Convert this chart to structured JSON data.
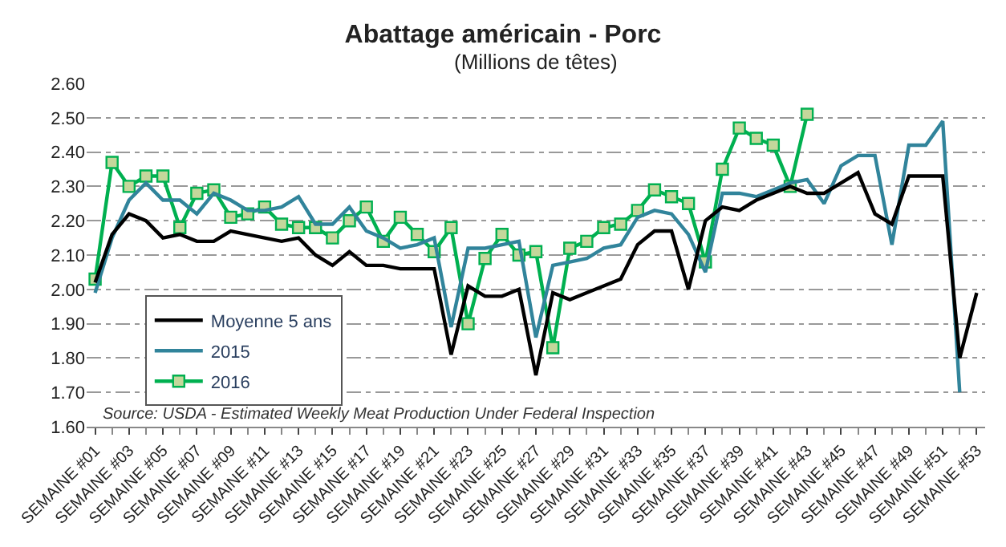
{
  "chart_data": {
    "type": "line",
    "title": "Abattage américain - Porc",
    "subtitle": "(Millions de têtes)",
    "categories": [
      "SEMAINE #01",
      null,
      "SEMAINE #03",
      null,
      "SEMAINE #05",
      null,
      "SEMAINE #07",
      null,
      "SEMAINE #09",
      null,
      "SEMAINE #11",
      null,
      "SEMAINE #13",
      null,
      "SEMAINE #15",
      null,
      "SEMAINE #17",
      null,
      "SEMAINE #19",
      null,
      "SEMAINE #21",
      null,
      "SEMAINE #23",
      null,
      "SEMAINE #25",
      null,
      "SEMAINE #27",
      null,
      "SEMAINE #29",
      null,
      "SEMAINE #31",
      null,
      "SEMAINE #33",
      null,
      "SEMAINE #35",
      null,
      "SEMAINE #37",
      null,
      "SEMAINE #39",
      null,
      "SEMAINE #41",
      null,
      "SEMAINE #43",
      null,
      "SEMAINE #45",
      null,
      "SEMAINE #47",
      null,
      "SEMAINE #49",
      null,
      "SEMAINE #51",
      null,
      "SEMAINE #53"
    ],
    "series": [
      {
        "name": "Moyenne 5 ans",
        "color": "#000000",
        "marker": "none",
        "values": [
          2.02,
          2.16,
          2.22,
          2.2,
          2.15,
          2.16,
          2.14,
          2.14,
          2.17,
          2.16,
          2.15,
          2.14,
          2.15,
          2.1,
          2.07,
          2.11,
          2.07,
          2.07,
          2.06,
          2.06,
          2.06,
          1.81,
          2.01,
          1.98,
          1.98,
          2.0,
          1.75,
          1.99,
          1.97,
          1.99,
          2.01,
          2.03,
          2.13,
          2.17,
          2.17,
          2.0,
          2.2,
          2.24,
          2.23,
          2.26,
          2.28,
          2.3,
          2.28,
          2.28,
          2.31,
          2.34,
          2.22,
          2.19,
          2.33,
          2.33,
          2.33,
          1.8,
          1.99
        ]
      },
      {
        "name": "2015",
        "color": "#31849b",
        "marker": "none",
        "values": [
          1.99,
          2.15,
          2.26,
          2.31,
          2.26,
          2.26,
          2.22,
          2.28,
          2.26,
          2.23,
          2.23,
          2.24,
          2.27,
          2.19,
          2.19,
          2.24,
          2.17,
          2.15,
          2.12,
          2.13,
          2.15,
          1.89,
          2.12,
          2.12,
          2.13,
          2.14,
          1.86,
          2.07,
          2.08,
          2.09,
          2.12,
          2.13,
          2.21,
          2.23,
          2.22,
          2.16,
          2.05,
          2.28,
          2.28,
          2.27,
          2.29,
          2.31,
          2.32,
          2.25,
          2.36,
          2.39,
          2.39,
          2.13,
          2.42,
          2.42,
          2.49,
          1.7,
          null
        ]
      },
      {
        "name": "2016",
        "color": "#00b050",
        "marker": "square",
        "values": [
          2.03,
          2.37,
          2.3,
          2.33,
          2.33,
          2.18,
          2.28,
          2.29,
          2.21,
          2.22,
          2.24,
          2.19,
          2.18,
          2.18,
          2.15,
          2.2,
          2.24,
          2.14,
          2.21,
          2.16,
          2.11,
          2.18,
          1.9,
          2.09,
          2.16,
          2.1,
          2.11,
          1.83,
          2.12,
          2.14,
          2.18,
          2.19,
          2.23,
          2.29,
          2.27,
          2.25,
          2.08,
          2.35,
          2.47,
          2.44,
          2.42,
          2.3,
          2.51,
          null,
          null,
          null,
          null,
          null,
          null,
          null,
          null,
          null,
          null
        ]
      }
    ],
    "ylim": [
      1.6,
      2.6
    ],
    "yticks": [
      {
        "value": 1.6,
        "label": "1.60"
      },
      {
        "value": 1.7,
        "label": "1.70"
      },
      {
        "value": 1.8,
        "label": "1.80"
      },
      {
        "value": 1.9,
        "label": "1.90"
      },
      {
        "value": 2.0,
        "label": "2.00"
      },
      {
        "value": 2.1,
        "label": "2.10"
      },
      {
        "value": 2.2,
        "label": "2.20"
      },
      {
        "value": 2.3,
        "label": "2.30"
      },
      {
        "value": 2.4,
        "label": "2.40"
      },
      {
        "value": 2.5,
        "label": "2.50"
      },
      {
        "value": 2.6,
        "label": "2.60"
      }
    ],
    "grid": "y",
    "legend": "bottom left",
    "line_style": "solid",
    "annotations": [
      "Source: USDA - Estimated Weekly Meat Production Under Federal Inspection"
    ]
  }
}
